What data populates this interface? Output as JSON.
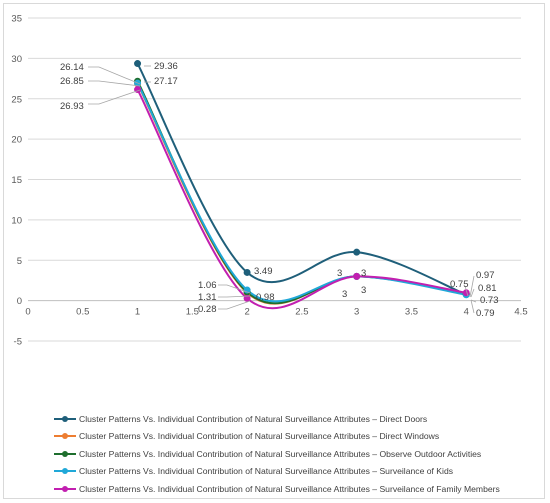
{
  "chart_data": {
    "type": "line",
    "title": "",
    "xlabel": "",
    "ylabel": "",
    "xlim": [
      0,
      4.5
    ],
    "ylim": [
      -5,
      35
    ],
    "x_ticks": [
      "0",
      "0.5",
      "1",
      "1.5",
      "2",
      "2.5",
      "3",
      "3.5",
      "4",
      "4.5"
    ],
    "y_ticks": [
      "-5",
      "0",
      "5",
      "10",
      "15",
      "20",
      "25",
      "30",
      "35"
    ],
    "grid": "horizontal",
    "legend_position": "bottom",
    "smooth": true,
    "x": [
      1,
      2,
      3,
      4
    ],
    "series": [
      {
        "name": "Cluster Patterns Vs. Individual Contribution of Natural Surveillance Attributes – Direct Doors",
        "color": "#1f5f7a",
        "values": [
          29.36,
          3.49,
          6,
          0.75
        ]
      },
      {
        "name": "Cluster Patterns Vs. Individual Contribution of Natural Surveillance Attributes – Direct Windows",
        "color": "#ed7d31",
        "values": [
          26.85,
          0.98,
          3,
          0.79
        ]
      },
      {
        "name": "Cluster Patterns Vs. Individual Contribution of Natural Surveillance Attributes – Observe Outdoor Activities",
        "color": "#1e6e2e",
        "values": [
          27.17,
          1.06,
          3,
          0.81
        ]
      },
      {
        "name": "Cluster Patterns Vs. Individual Contribution of Natural Surveillance Attributes – Surveilance of Kids",
        "color": "#20a8d8",
        "values": [
          26.93,
          1.31,
          3,
          0.73
        ]
      },
      {
        "name": "Cluster Patterns Vs. Individual Contribution of Natural Surveillance Attributes – Surveilance of Family Members",
        "color": "#c21fb0",
        "values": [
          26.14,
          0.28,
          3,
          0.97
        ]
      }
    ],
    "data_labels": [
      {
        "text": "26.14"
      },
      {
        "text": "29.36"
      },
      {
        "text": "26.85"
      },
      {
        "text": "27.17"
      },
      {
        "text": "26.93"
      },
      {
        "text": "3.49"
      },
      {
        "text": "1.06"
      },
      {
        "text": "1.31"
      },
      {
        "text": "0.98"
      },
      {
        "text": "0.28"
      },
      {
        "text": "3"
      },
      {
        "text": "3"
      },
      {
        "text": "3"
      },
      {
        "text": "3"
      },
      {
        "text": "0.75"
      },
      {
        "text": "0.97"
      },
      {
        "text": "0.81"
      },
      {
        "text": "0.73"
      },
      {
        "text": "0.79"
      }
    ]
  }
}
